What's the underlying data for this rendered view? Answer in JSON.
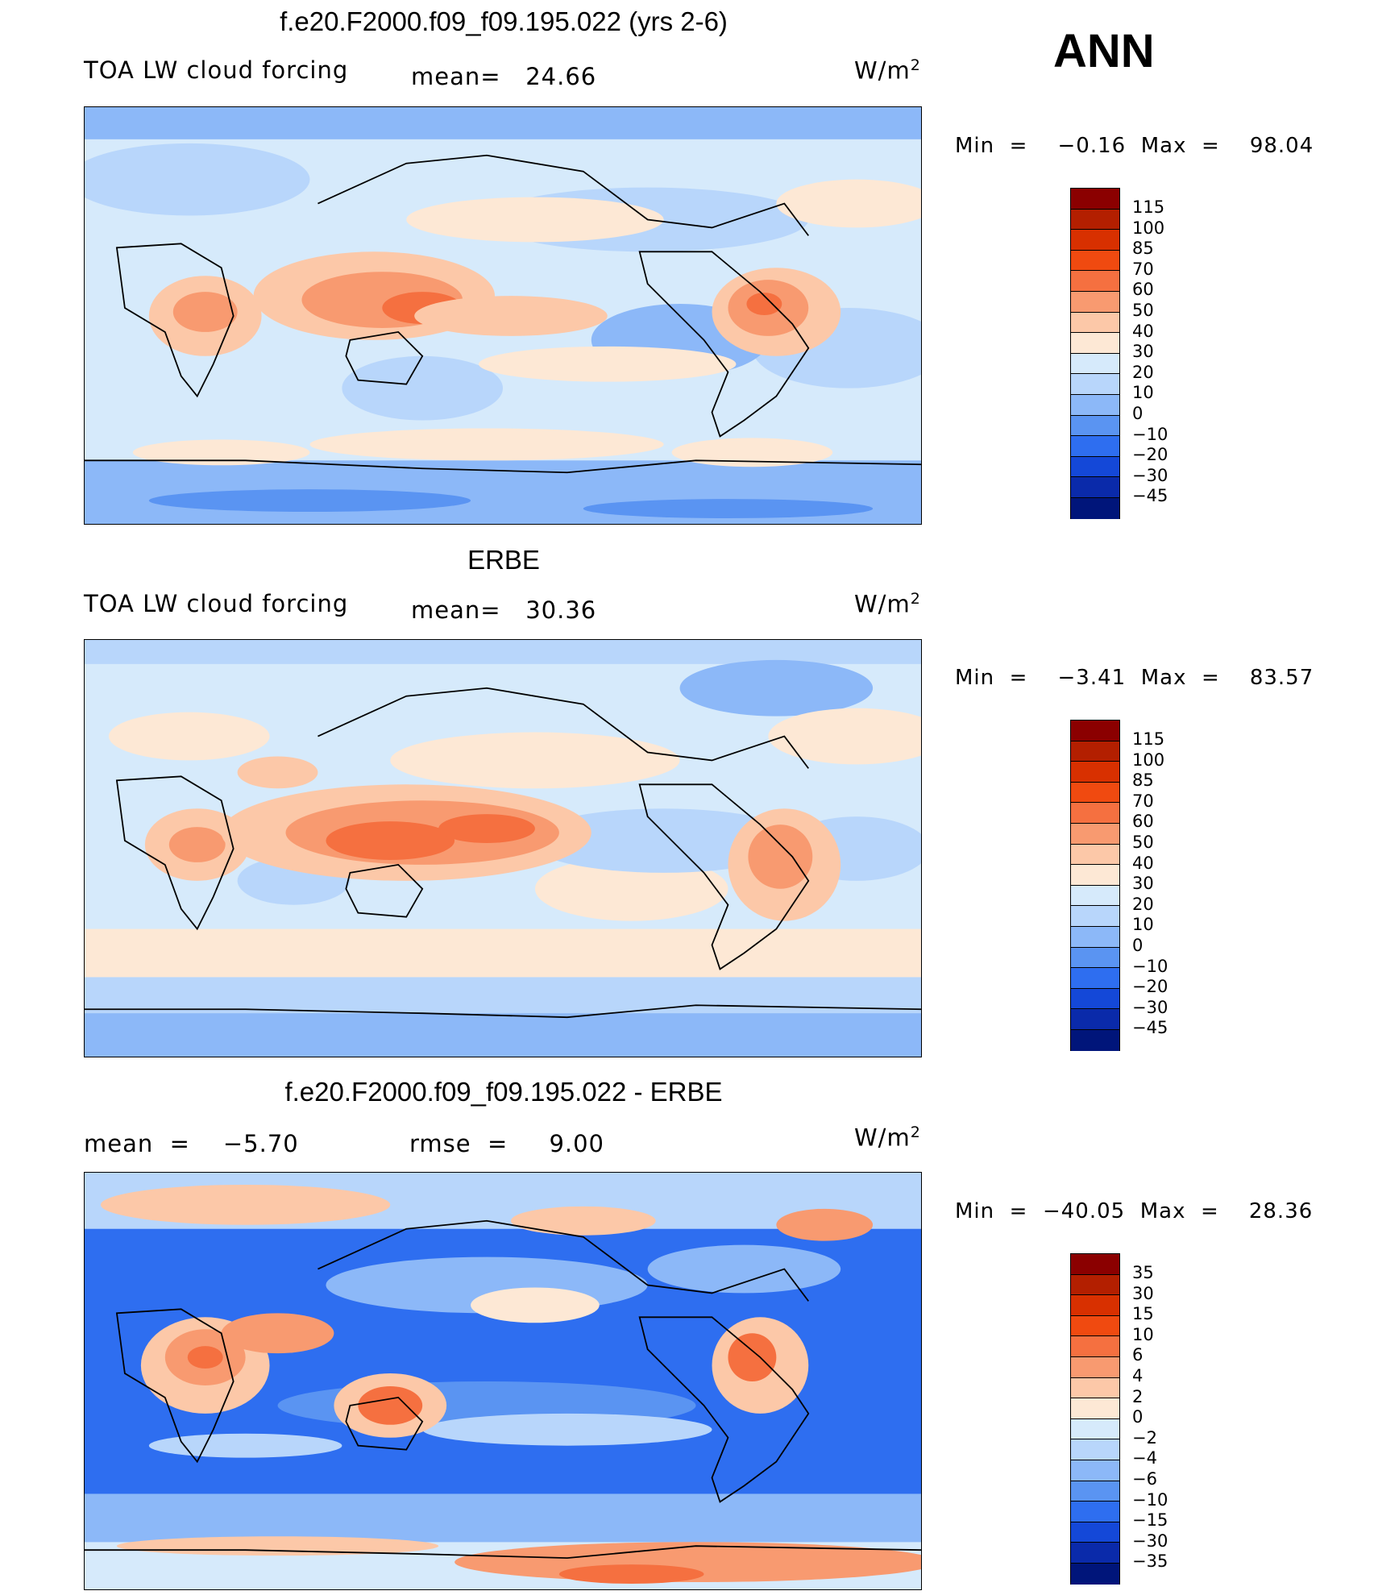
{
  "season": "ANN",
  "units_main": "W/m",
  "units_exp": "2",
  "panels": [
    {
      "title": "f.e20.F2000.f09_f09.195.022 (yrs 2-6)",
      "left_text": "TOA LW cloud forcing",
      "mid_text": "mean=   24.66",
      "minmax": "Min  =    −0.16  Max  =    98.04"
    },
    {
      "title": "ERBE",
      "left_text": "TOA LW cloud forcing",
      "mid_text": "mean=   30.36",
      "minmax": "Min  =    −3.41  Max  =    83.57"
    },
    {
      "title": "f.e20.F2000.f09_f09.195.022 - ERBE",
      "left_text": "mean  =    −5.70",
      "mid_text": "rmse  =     9.00",
      "minmax": "Min  =  −40.05  Max  =    28.36"
    }
  ],
  "colorbar_main": {
    "labels": [
      "115",
      "100",
      "85",
      "70",
      "60",
      "50",
      "40",
      "30",
      "20",
      "10",
      "0",
      "−10",
      "−20",
      "−30",
      "−45"
    ],
    "colors": [
      "#8b0000",
      "#b31f00",
      "#d83000",
      "#f04a10",
      "#f57040",
      "#f89a70",
      "#fcc8a8",
      "#fde8d5",
      "#d6eafb",
      "#b8d6fb",
      "#8cb8f8",
      "#5a94f2",
      "#2e6ef0",
      "#1448d8",
      "#0a2aaa",
      "#00157a"
    ]
  },
  "colorbar_diff": {
    "labels": [
      "35",
      "30",
      "15",
      "10",
      "6",
      "4",
      "2",
      "0",
      "−2",
      "−4",
      "−6",
      "−10",
      "−15",
      "−30",
      "−35"
    ],
    "colors": [
      "#8b0000",
      "#b31f00",
      "#d83000",
      "#f04a10",
      "#f57040",
      "#f89a70",
      "#fcc8a8",
      "#fde8d5",
      "#d6eafb",
      "#b8d6fb",
      "#8cb8f8",
      "#5a94f2",
      "#2e6ef0",
      "#1448d8",
      "#0a2aaa",
      "#00157a"
    ]
  }
}
